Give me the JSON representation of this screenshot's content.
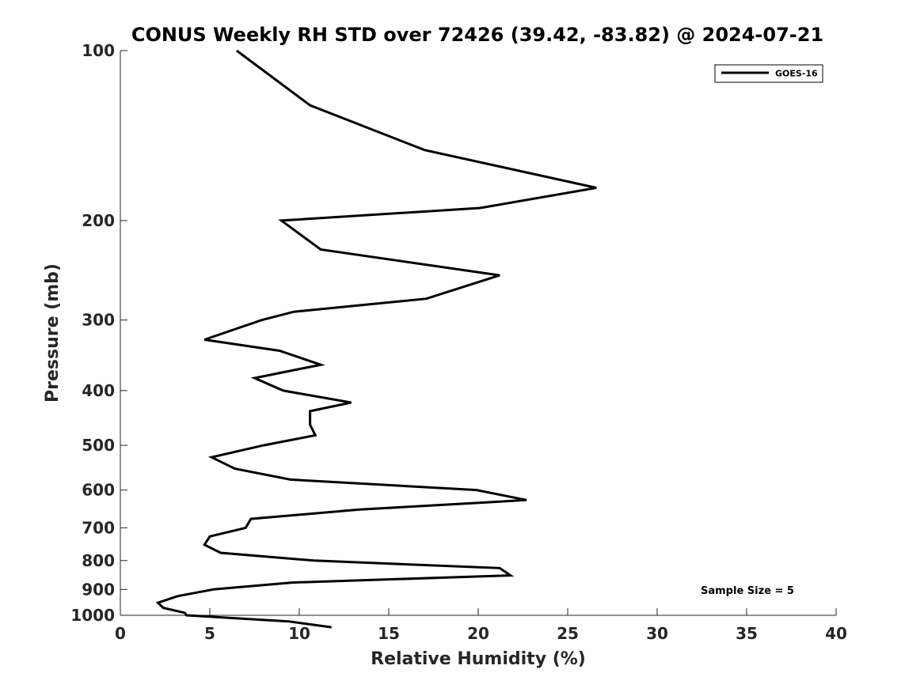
{
  "chart_data": {
    "type": "line",
    "title": "CONUS Weekly RH STD over 72426 (39.42, -83.82) @ 2024-07-21",
    "xlabel": "Relative Humidity (%)",
    "ylabel": "Pressure (mb)",
    "xlim": [
      0,
      40
    ],
    "ylim": [
      100,
      1000
    ],
    "y_scale": "log",
    "y_reversed": true,
    "x_ticks": [
      "0",
      "5",
      "10",
      "15",
      "20",
      "25",
      "30",
      "35",
      "40"
    ],
    "y_ticks": [
      "100",
      "200",
      "300",
      "400",
      "500",
      "600",
      "700",
      "800",
      "900",
      "1000"
    ],
    "legend_position": "top-right",
    "grid": false,
    "annotation": "Sample Size = 5",
    "series": [
      {
        "name": "GOES-16",
        "color": "#000000",
        "x": [
          6.5,
          10.6,
          17.0,
          26.6,
          20.1,
          9.0,
          11.2,
          21.2,
          17.1,
          9.7,
          7.9,
          4.7,
          8.9,
          11.2,
          7.5,
          9.1,
          12.9,
          10.6,
          10.6,
          10.9,
          8.0,
          5.1,
          6.4,
          9.5,
          19.9,
          22.7,
          13.3,
          7.3,
          7.0,
          5.0,
          4.7,
          5.6,
          10.8,
          21.2,
          21.8,
          9.6,
          5.2,
          3.2,
          2.1,
          2.4,
          3.6,
          3.7,
          9.4,
          11.8
        ],
        "y": [
          100,
          125,
          150,
          175,
          190,
          200,
          225,
          250,
          275,
          290,
          300,
          325,
          340,
          360,
          380,
          400,
          420,
          435,
          460,
          480,
          500,
          525,
          550,
          575,
          600,
          625,
          650,
          675,
          700,
          725,
          750,
          775,
          800,
          825,
          850,
          875,
          900,
          925,
          950,
          970,
          990,
          1000,
          1025,
          1050
        ]
      }
    ]
  }
}
